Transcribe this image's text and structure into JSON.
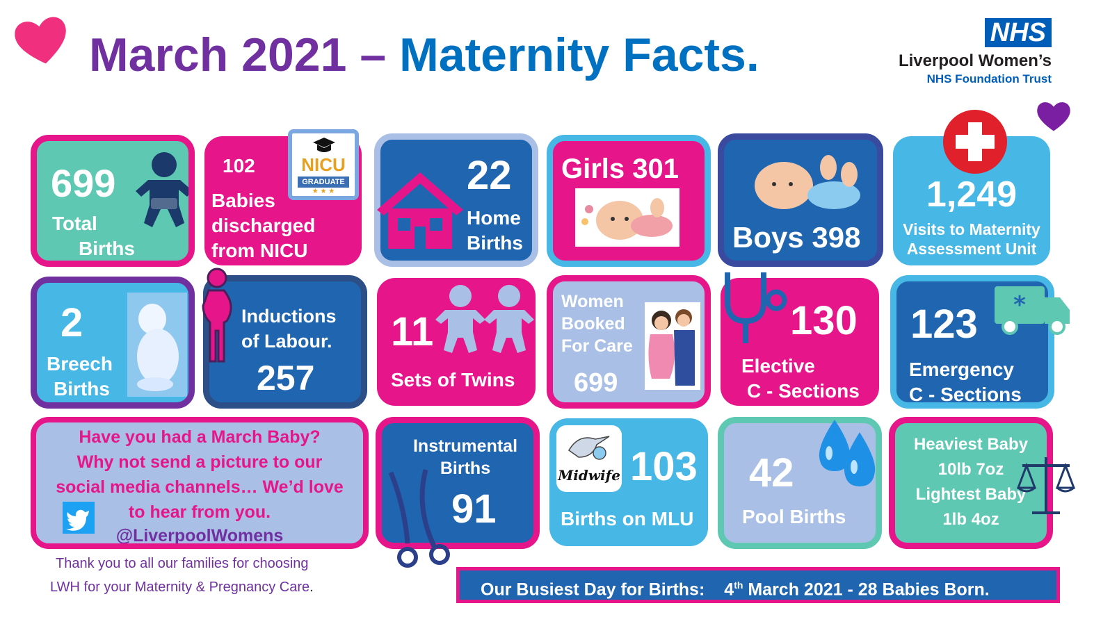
{
  "title": {
    "part1": "March 2021 – ",
    "part2": "Maternity Facts."
  },
  "logo": {
    "badge": "NHS",
    "line1": "Liverpool Women’s",
    "line2": "NHS Foundation Trust"
  },
  "colors": {
    "purple": "#7030a0",
    "blue": "#0070c0",
    "pink": "#e6168a",
    "teal": "#5fc8b2",
    "light_blue": "#47b7e6",
    "lavender": "#a9bfe6",
    "dark_blue": "#1f65b0"
  },
  "tiles": {
    "total": {
      "value": "699",
      "label1": "Total",
      "label2": "Births"
    },
    "nicu": {
      "value": "102",
      "label1": "Babies",
      "label2": "discharged",
      "label3": "from NICU",
      "badge1": "NICU",
      "badge2": "GRADUATE"
    },
    "home": {
      "value": "22",
      "label1": "Home",
      "label2": "Births"
    },
    "girls": {
      "label": "Girls 301"
    },
    "boys": {
      "label": "Boys 398"
    },
    "mau": {
      "value": "1,249",
      "label1": "Visits to Maternity",
      "label2": "Assessment Unit"
    },
    "breech": {
      "value": "2",
      "label1": "Breech",
      "label2": "Births"
    },
    "inductions": {
      "label1": "Inductions",
      "label2": "of Labour.",
      "value": "257"
    },
    "twins": {
      "value": "11",
      "label": "Sets of Twins"
    },
    "booked": {
      "label1": "Women",
      "label2": "Booked",
      "label3": "For Care",
      "value": "699"
    },
    "elective": {
      "value": "130",
      "label1": "Elective",
      "label2": "C - Sections"
    },
    "emergency": {
      "value": "123",
      "label1": "Emergency",
      "label2": "C - Sections"
    },
    "march_baby": {
      "line1": "Have you had a March Baby?",
      "line2": "Why not send a picture to our",
      "line3": "social media channels… We’d love",
      "line4": "to hear from you.",
      "handle": "@LiverpoolWomens"
    },
    "instrumental": {
      "label1": "Instrumental",
      "label2": "Births",
      "value": "91"
    },
    "mlu": {
      "value": "103",
      "label": "Births on MLU",
      "badge": "Midwife"
    },
    "pool": {
      "value": "42",
      "label": "Pool Births"
    },
    "weights": {
      "line1": "Heaviest Baby",
      "line2": "10lb 7oz",
      "line3": "Lightest Baby",
      "line4": "1lb 4oz"
    }
  },
  "footer": {
    "thanks1": "Thank you to all our families for choosing",
    "thanks2": "LWH for your Maternity & Pregnancy Care",
    "thanks_end": ".",
    "busiest_label": "Our Busiest Day for Births:",
    "busiest_day": "4",
    "busiest_suffix": "th",
    "busiest_rest": " March 2021 - 28 Babies Born."
  }
}
